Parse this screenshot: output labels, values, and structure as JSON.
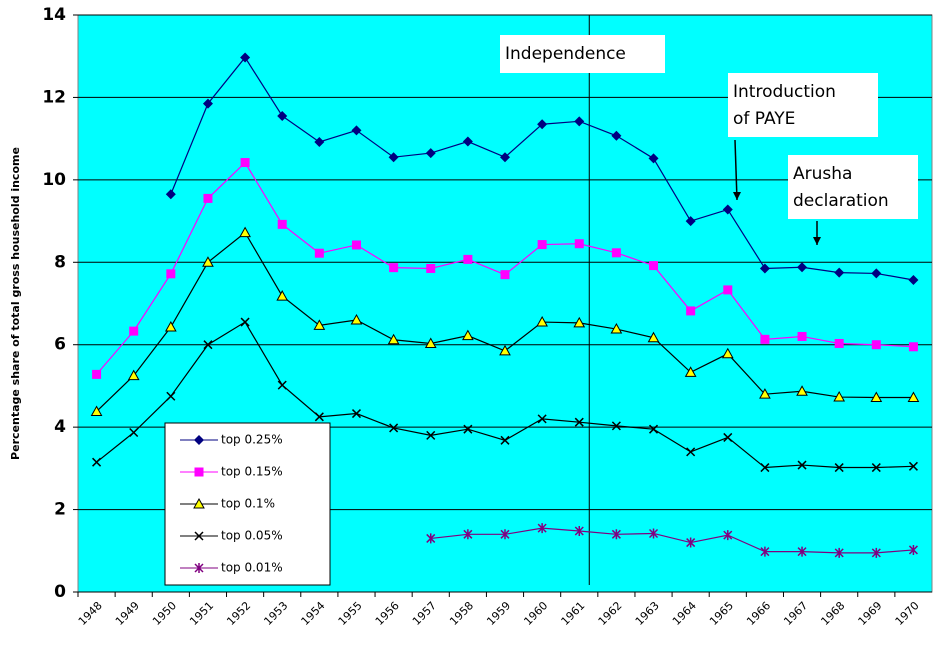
{
  "chart_data": {
    "type": "line",
    "y_label": "Percentage share of total gross household income",
    "categories": [
      "1948",
      "1949",
      "1950",
      "1951",
      "1952",
      "1953",
      "1954",
      "1955",
      "1956",
      "1957",
      "1958",
      "1959",
      "1960",
      "1961",
      "1962",
      "1963",
      "1964",
      "1965",
      "1966",
      "1967",
      "1968",
      "1969",
      "1970"
    ],
    "series": [
      {
        "name": "top 0.25%",
        "color": "#000080",
        "marker": "diamond",
        "values": [
          null,
          null,
          9.65,
          11.85,
          12.97,
          11.55,
          10.92,
          11.2,
          10.55,
          10.65,
          10.93,
          10.55,
          11.35,
          11.42,
          11.07,
          10.52,
          9.0,
          9.28,
          7.85,
          7.88,
          7.75,
          7.73,
          7.57
        ]
      },
      {
        "name": "top 0.15%",
        "color": "#ff00ff",
        "marker": "square",
        "values": [
          5.28,
          6.33,
          7.72,
          9.55,
          10.42,
          8.92,
          8.22,
          8.42,
          7.87,
          7.85,
          8.07,
          7.7,
          8.43,
          8.45,
          8.23,
          7.92,
          6.82,
          7.33,
          6.13,
          6.2,
          6.03,
          6.0,
          5.95
        ]
      },
      {
        "name": "top 0.1%",
        "color": "#000000",
        "marker": "triangle",
        "values": [
          4.38,
          5.25,
          6.43,
          8.0,
          8.72,
          7.18,
          6.47,
          6.6,
          6.12,
          6.03,
          6.22,
          5.85,
          6.55,
          6.53,
          6.38,
          6.17,
          5.33,
          5.78,
          4.8,
          4.87,
          4.73,
          4.72,
          4.72
        ]
      },
      {
        "name": "top 0.05%",
        "color": "#000000",
        "marker": "cross",
        "values": [
          3.15,
          3.87,
          4.75,
          6.0,
          6.55,
          5.02,
          4.25,
          4.33,
          3.98,
          3.8,
          3.95,
          3.68,
          4.2,
          4.12,
          4.03,
          3.95,
          3.4,
          3.75,
          3.02,
          3.08,
          3.02,
          3.02,
          3.05
        ]
      },
      {
        "name": "top 0.01%",
        "color": "#800080",
        "marker": "star",
        "values": [
          null,
          null,
          null,
          null,
          null,
          null,
          null,
          null,
          null,
          1.3,
          1.4,
          1.4,
          1.55,
          1.48,
          1.4,
          1.42,
          1.2,
          1.38,
          0.98,
          0.98,
          0.95,
          0.95,
          1.02
        ]
      }
    ],
    "ylim": [
      0,
      14
    ],
    "yticks": [
      0,
      2,
      4,
      6,
      8,
      10,
      12,
      14
    ],
    "grid": true,
    "background": "#00ffff",
    "annotations": [
      {
        "lines": [
          "Independence"
        ]
      },
      {
        "lines": [
          "Introduction",
          "of PAYE"
        ]
      },
      {
        "lines": [
          "Arusha",
          "declaration"
        ]
      }
    ]
  }
}
